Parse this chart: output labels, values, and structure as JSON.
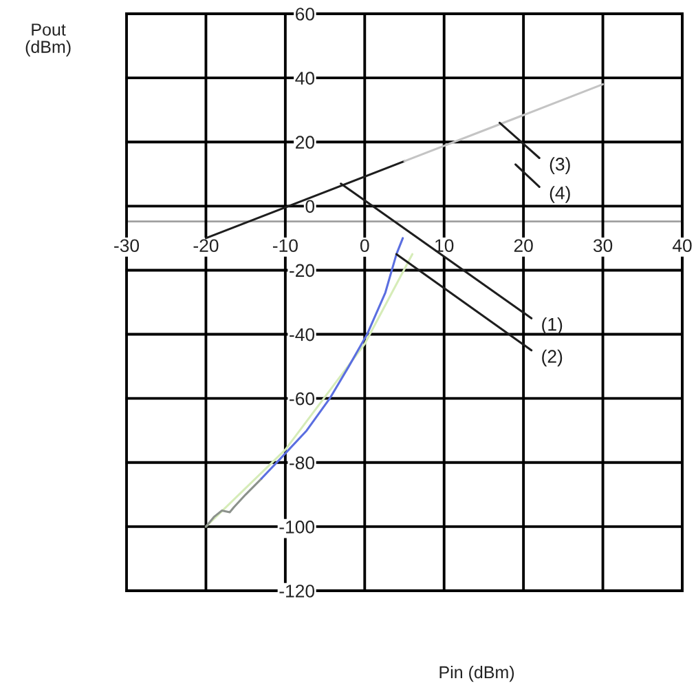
{
  "chart_data": {
    "type": "line",
    "xlabel": "Pin (dBm)",
    "ylabel": "Pout\n(dBm)",
    "xlim": [
      -30,
      40
    ],
    "xticks": [
      -30,
      -20,
      -10,
      0,
      10,
      20,
      30,
      40
    ],
    "ylim": [
      -120,
      60
    ],
    "yticks": [
      -120,
      -100,
      -80,
      -60,
      -40,
      -20,
      0,
      20,
      40,
      60
    ],
    "grid": true,
    "marker": "none",
    "line_style": "solid",
    "series": [
      {
        "color": "#1e1e1e",
        "x": [
          -20,
          5
        ],
        "values": [
          -10,
          14
        ]
      },
      {
        "color": "#c4c4c4",
        "x": [
          5,
          30
        ],
        "values": [
          14,
          38
        ]
      },
      {
        "color": "#d6ecb8",
        "x": [
          -20,
          -10,
          0,
          6
        ],
        "values": [
          -100,
          -76,
          -43,
          -15
        ]
      },
      {
        "color": "#8c928c",
        "x": [
          -20,
          -19,
          -18,
          -17,
          -16.5,
          -15,
          -13
        ],
        "values": [
          -100,
          -97,
          -95,
          -95.5,
          -94,
          -90,
          -85
        ]
      },
      {
        "color": "#5a6ee0",
        "x": [
          -13,
          -10.7,
          -7.3,
          -4.4,
          -2,
          0.3,
          2.6,
          4,
          4.8
        ],
        "values": [
          -85,
          -79,
          -70,
          -60,
          -50,
          -40,
          -27,
          -15,
          -10
        ]
      },
      {
        "name": "(1)",
        "color": "#1e1e1e",
        "x": [
          -3,
          21
        ],
        "values": [
          7,
          -35
        ]
      },
      {
        "name": "(2)",
        "color": "#1e1e1e",
        "x": [
          4,
          21
        ],
        "values": [
          -15,
          -45
        ]
      },
      {
        "name": "(3)",
        "color": "#1e1e1e",
        "x": [
          17,
          22
        ],
        "values": [
          26,
          15
        ]
      },
      {
        "name": "(4)",
        "color": "#1e1e1e",
        "x": [
          19,
          22
        ],
        "values": [
          13,
          6
        ]
      }
    ]
  }
}
